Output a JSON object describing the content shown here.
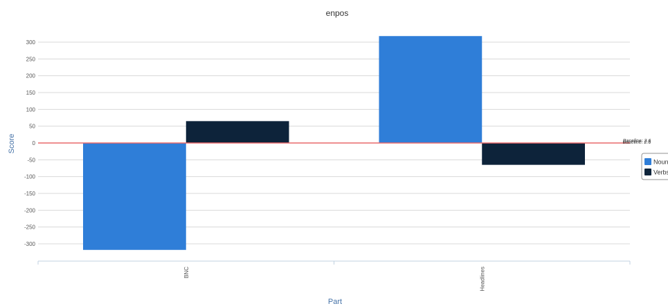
{
  "chart_data": {
    "type": "bar",
    "title": "enpos",
    "xlabel": "Part",
    "ylabel": "Score",
    "categories": [
      "BNC",
      "Headlines"
    ],
    "series": [
      {
        "name": "Nouns",
        "values": [
          -318,
          318
        ],
        "color": "#2f7ed8"
      },
      {
        "name": "Verbs",
        "values": [
          65,
          -65
        ],
        "color": "#0d233a"
      }
    ],
    "ylim": [
      -345,
      325
    ],
    "yticks": [
      300,
      250,
      200,
      150,
      100,
      50,
      0,
      -50,
      -100,
      -150,
      -200,
      -250,
      -300
    ],
    "grid": true,
    "legend": "right",
    "plot_lines": [
      {
        "value": 0,
        "color": "#e8686a",
        "labels": [
          "Baseline: 2.6",
          "Baseline: 2.6"
        ]
      }
    ]
  }
}
